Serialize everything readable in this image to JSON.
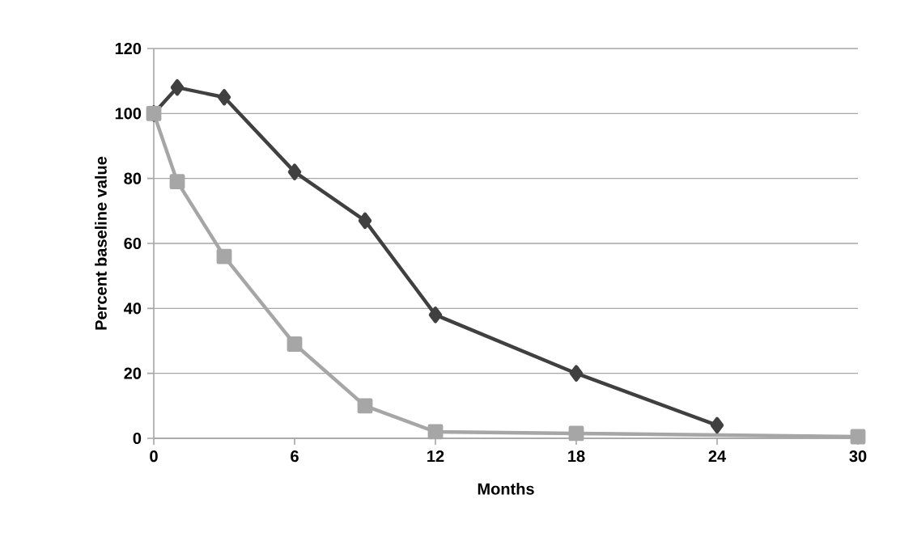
{
  "chart_data": {
    "type": "line",
    "xlabel": "Months",
    "ylabel": "Percent baseline value",
    "xlim": [
      0,
      30
    ],
    "xticks": [
      0,
      6,
      12,
      18,
      24,
      30
    ],
    "ylim": [
      0,
      120
    ],
    "yticks": [
      0,
      20,
      40,
      60,
      80,
      100,
      120
    ],
    "grid": "y",
    "series": [
      {
        "color": "#404040",
        "marker": "diamond",
        "x": [
          0,
          1,
          3,
          6,
          9,
          12,
          18,
          24
        ],
        "values": [
          100,
          108,
          105,
          82,
          67,
          38,
          20,
          4
        ]
      },
      {
        "color": "#a6a6a6",
        "marker": "square",
        "x": [
          0,
          1,
          3,
          6,
          9,
          12,
          18,
          30
        ],
        "values": [
          100,
          79,
          56,
          29,
          10,
          2,
          1.5,
          0.5
        ]
      }
    ]
  }
}
